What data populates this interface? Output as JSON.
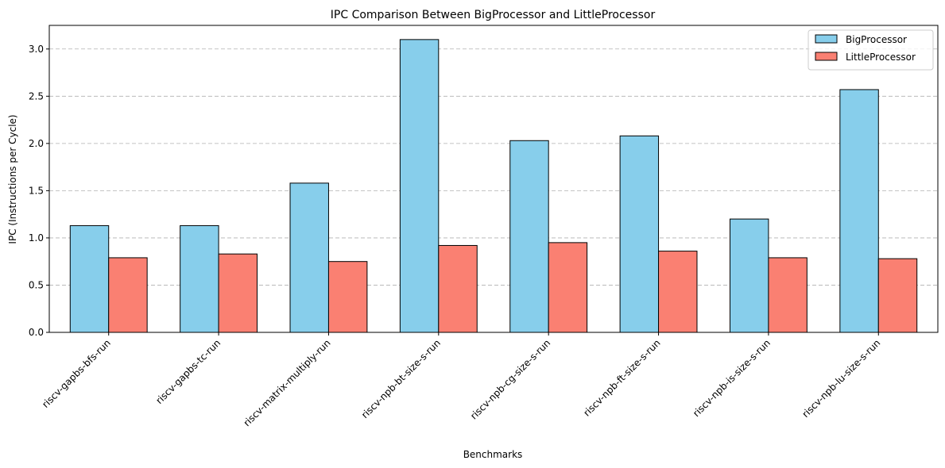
{
  "chart_data": {
    "type": "bar",
    "title": "IPC Comparison Between BigProcessor and LittleProcessor",
    "xlabel": "Benchmarks",
    "ylabel": "IPC (Instructions per Cycle)",
    "ylim": [
      0,
      3.25
    ],
    "yticks": [
      0.0,
      0.5,
      1.0,
      1.5,
      2.0,
      2.5,
      3.0
    ],
    "ytick_labels": [
      "0.0",
      "0.5",
      "1.0",
      "1.5",
      "2.0",
      "2.5",
      "3.0"
    ],
    "grid": "y-dashed",
    "legend_position": "top-right",
    "categories": [
      "riscv-gapbs-bfs-run",
      "riscv-gapbs-tc-run",
      "riscv-matrix-multiply-run",
      "riscv-npb-bt-size-s-run",
      "riscv-npb-cg-size-s-run",
      "riscv-npb-ft-size-s-run",
      "riscv-npb-is-size-s-run",
      "riscv-npb-lu-size-s-run"
    ],
    "series": [
      {
        "name": "BigProcessor",
        "color": "#87ceeb",
        "values": [
          1.13,
          1.13,
          1.58,
          3.1,
          2.03,
          2.08,
          1.2,
          2.57
        ]
      },
      {
        "name": "LittleProcessor",
        "color": "#fa8072",
        "values": [
          0.79,
          0.83,
          0.75,
          0.92,
          0.95,
          0.86,
          0.79,
          0.78
        ]
      }
    ]
  }
}
